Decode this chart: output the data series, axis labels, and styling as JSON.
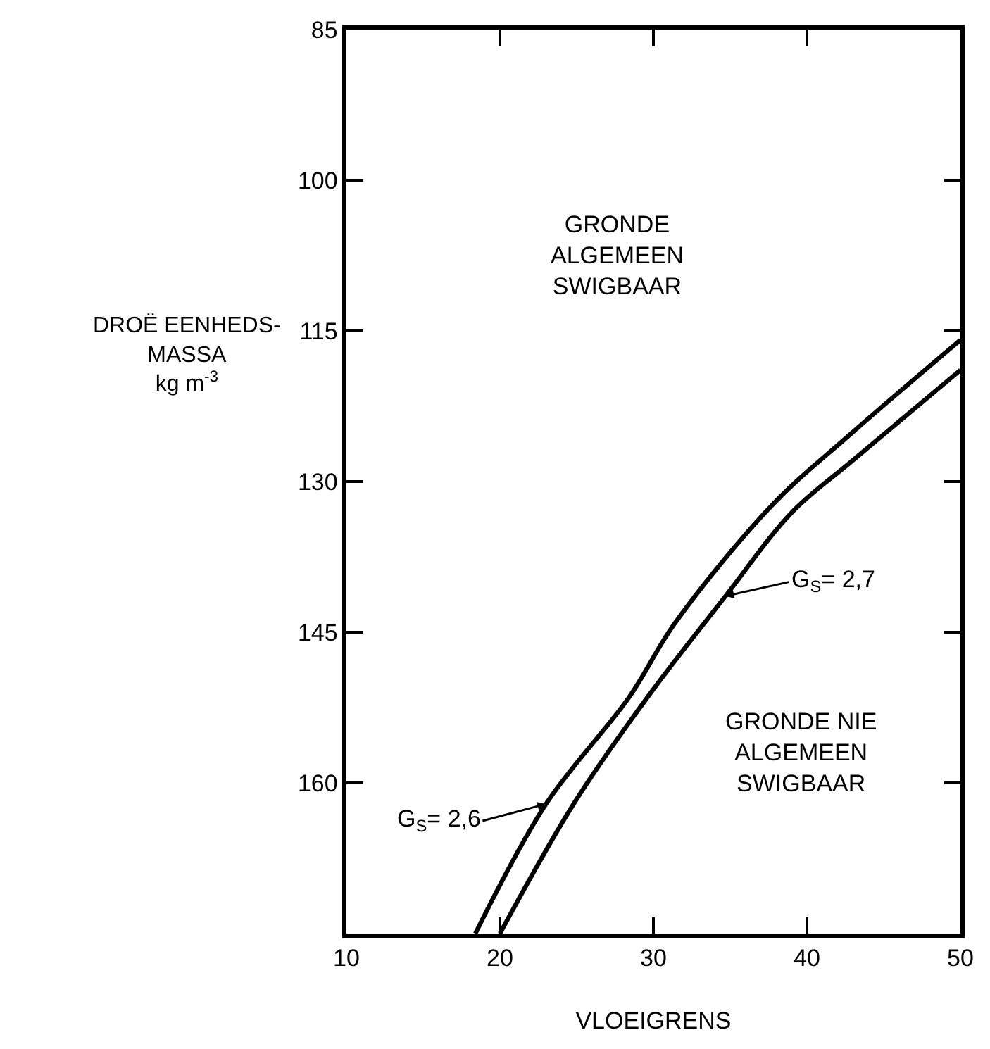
{
  "chart_data": {
    "type": "line",
    "xlabel": "VLOEIGRENS",
    "ylabel": "DROË EENHEDS-\nMASSA\nkg m$^{-3}$",
    "xlim": [
      10,
      50
    ],
    "xticks": [
      10,
      20,
      30,
      40,
      50
    ],
    "ylim": [
      175,
      85
    ],
    "yticks": [
      85,
      100,
      115,
      130,
      145,
      160
    ],
    "marker": "none",
    "line_style": "solid",
    "series": [
      {
        "color": "#000000",
        "x": [
          18.4,
          23.0,
          28.4,
          31.4,
          37.7,
          42.9,
          50
        ],
        "values": [
          175,
          162.1,
          151.5,
          144.1,
          132.4,
          125.2,
          115.9
        ]
      },
      {
        "color": "#000000",
        "x": [
          20.0,
          24.8,
          29.6,
          34.7,
          39.0,
          42.9,
          50
        ],
        "values": [
          175,
          162.1,
          151.5,
          141.4,
          133.1,
          128.0,
          118.9
        ]
      }
    ],
    "annotations": [
      "GRONDE\nALGEMEEN\nSWIGBAAR",
      "GRONDE NIE\nALGEMEEN\nSWIGBAAR",
      {
        "text": "G$_{S}$= 2,6",
        "x": 23.0,
        "y": 162.1
      },
      {
        "text": "G$_{S}$= 2,7",
        "x": 34.7,
        "y": 141.4
      }
    ]
  }
}
